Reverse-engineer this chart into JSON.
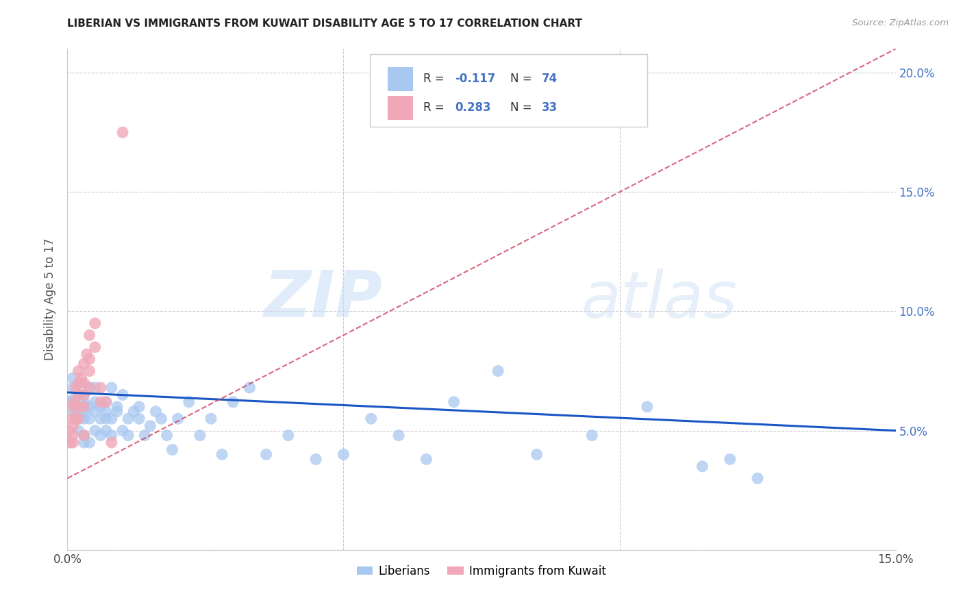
{
  "title": "LIBERIAN VS IMMIGRANTS FROM KUWAIT DISABILITY AGE 5 TO 17 CORRELATION CHART",
  "source": "Source: ZipAtlas.com",
  "ylabel": "Disability Age 5 to 17",
  "xlim": [
    0.0,
    0.15
  ],
  "ylim": [
    0.0,
    0.21
  ],
  "xtick_vals": [
    0.0,
    0.05,
    0.1,
    0.15
  ],
  "ytick_vals": [
    0.0,
    0.05,
    0.1,
    0.15,
    0.2
  ],
  "color_liberian": "#a8c8f0",
  "color_kuwait": "#f0a8b8",
  "color_line_liberian": "#1a56c4",
  "color_line_kuwait": "#d04060",
  "watermark_zip": "ZIP",
  "watermark_atlas": "atlas",
  "legend_r1_label": "R = ",
  "legend_r1_val": "-0.117",
  "legend_n1_label": "N = ",
  "legend_n1_val": "74",
  "legend_r2_label": "R = ",
  "legend_r2_val": "0.283",
  "legend_n2_label": "N = ",
  "legend_n2_val": "33",
  "lib_line_x0": 0.0,
  "lib_line_y0": 0.066,
  "lib_line_x1": 0.15,
  "lib_line_y1": 0.05,
  "kuw_line_x0": 0.0,
  "kuw_line_y0": 0.03,
  "kuw_line_x1": 0.15,
  "kuw_line_y1": 0.21,
  "liberian_x": [
    0.0005,
    0.001,
    0.001,
    0.001,
    0.001,
    0.0015,
    0.002,
    0.002,
    0.002,
    0.002,
    0.002,
    0.0025,
    0.003,
    0.003,
    0.003,
    0.003,
    0.003,
    0.003,
    0.003,
    0.004,
    0.004,
    0.004,
    0.004,
    0.005,
    0.005,
    0.005,
    0.005,
    0.006,
    0.006,
    0.006,
    0.007,
    0.007,
    0.007,
    0.007,
    0.008,
    0.008,
    0.008,
    0.009,
    0.009,
    0.01,
    0.01,
    0.011,
    0.011,
    0.012,
    0.013,
    0.013,
    0.014,
    0.015,
    0.016,
    0.017,
    0.018,
    0.019,
    0.02,
    0.022,
    0.024,
    0.026,
    0.028,
    0.03,
    0.033,
    0.036,
    0.04,
    0.045,
    0.05,
    0.055,
    0.06,
    0.065,
    0.07,
    0.078,
    0.085,
    0.095,
    0.105,
    0.115,
    0.12,
    0.125
  ],
  "liberian_y": [
    0.062,
    0.072,
    0.058,
    0.063,
    0.068,
    0.055,
    0.06,
    0.065,
    0.055,
    0.05,
    0.058,
    0.07,
    0.06,
    0.055,
    0.065,
    0.048,
    0.058,
    0.062,
    0.045,
    0.055,
    0.06,
    0.068,
    0.045,
    0.058,
    0.062,
    0.068,
    0.05,
    0.055,
    0.06,
    0.048,
    0.058,
    0.062,
    0.05,
    0.055,
    0.068,
    0.048,
    0.055,
    0.058,
    0.06,
    0.065,
    0.05,
    0.055,
    0.048,
    0.058,
    0.055,
    0.06,
    0.048,
    0.052,
    0.058,
    0.055,
    0.048,
    0.042,
    0.055,
    0.062,
    0.048,
    0.055,
    0.04,
    0.062,
    0.068,
    0.04,
    0.048,
    0.038,
    0.04,
    0.055,
    0.048,
    0.038,
    0.062,
    0.075,
    0.04,
    0.048,
    0.06,
    0.035,
    0.038,
    0.03
  ],
  "kuwait_x": [
    0.0003,
    0.0005,
    0.0008,
    0.001,
    0.001,
    0.001,
    0.001,
    0.0012,
    0.0015,
    0.0015,
    0.002,
    0.002,
    0.002,
    0.002,
    0.002,
    0.0025,
    0.003,
    0.003,
    0.003,
    0.003,
    0.003,
    0.0035,
    0.004,
    0.004,
    0.004,
    0.004,
    0.005,
    0.005,
    0.006,
    0.006,
    0.007,
    0.008,
    0.01
  ],
  "kuwait_y": [
    0.05,
    0.045,
    0.055,
    0.048,
    0.06,
    0.052,
    0.045,
    0.062,
    0.055,
    0.068,
    0.06,
    0.065,
    0.07,
    0.055,
    0.075,
    0.072,
    0.06,
    0.065,
    0.07,
    0.078,
    0.048,
    0.082,
    0.068,
    0.075,
    0.08,
    0.09,
    0.085,
    0.095,
    0.062,
    0.068,
    0.062,
    0.045,
    0.175
  ]
}
